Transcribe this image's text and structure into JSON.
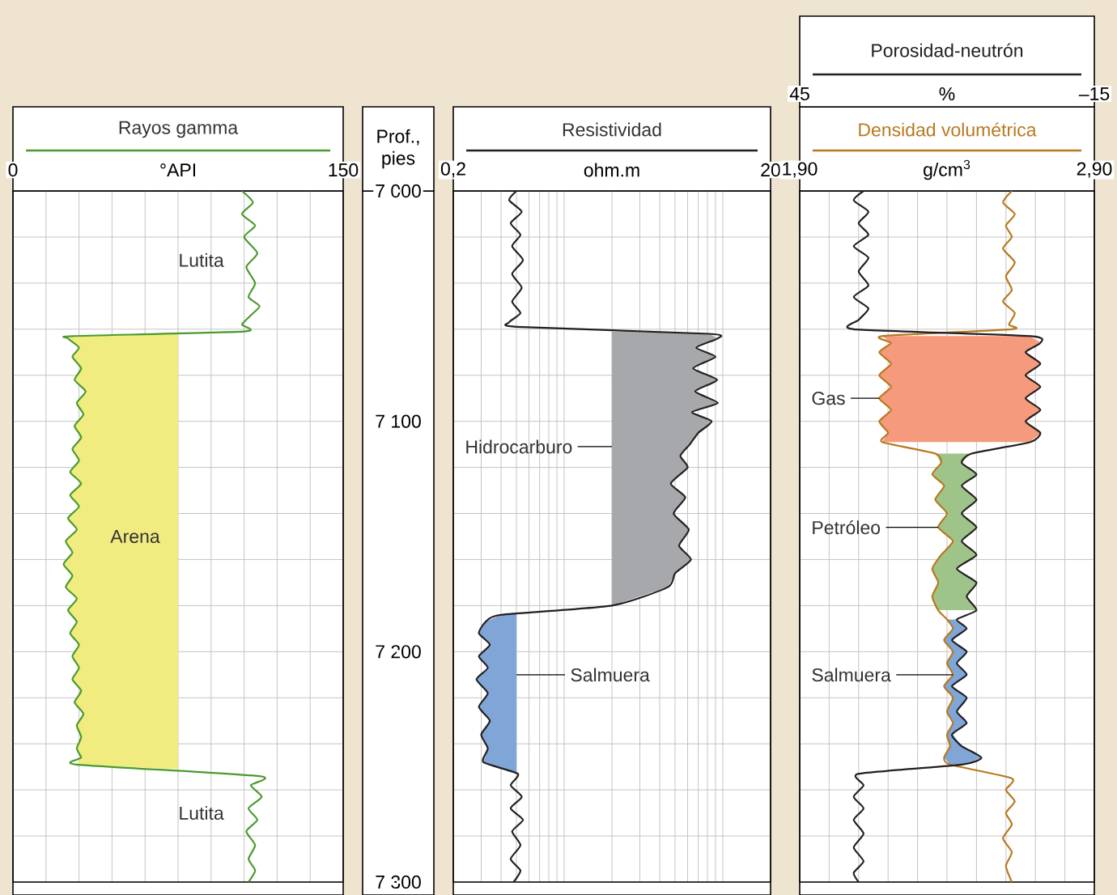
{
  "chart_data": [
    {
      "type": "line",
      "xlabel": "°API",
      "xlim": [
        0,
        150
      ],
      "xticks": [
        0,
        {
          "value": 15,
          "label": null
        },
        {
          "value": 30,
          "label": null
        },
        {
          "value": 45,
          "label": null
        },
        {
          "value": 60,
          "label": null
        },
        {
          "value": 75,
          "label": null
        },
        {
          "value": 90,
          "label": null
        },
        {
          "value": 105,
          "label": null
        },
        {
          "value": 120,
          "label": null
        },
        {
          "value": 135,
          "label": null
        },
        150
      ],
      "ylim": [
        7300,
        7000
      ],
      "yticks": [
        {
          "value": 7000,
          "label": null
        },
        {
          "value": 7020,
          "label": null
        },
        {
          "value": 7040,
          "label": null
        },
        {
          "value": 7060,
          "label": null
        },
        {
          "value": 7080,
          "label": null
        },
        {
          "value": 7100,
          "label": null
        },
        {
          "value": 7120,
          "label": null
        },
        {
          "value": 7140,
          "label": null
        },
        {
          "value": 7160,
          "label": null
        },
        {
          "value": 7180,
          "label": null
        },
        {
          "value": 7200,
          "label": null
        },
        {
          "value": 7220,
          "label": null
        },
        {
          "value": 7240,
          "label": null
        },
        {
          "value": 7260,
          "label": null
        },
        {
          "value": 7280,
          "label": null
        },
        {
          "value": 7300,
          "label": null
        }
      ],
      "tick_labels": "x",
      "grid": true,
      "legend": "top",
      "annotations": [
        "Lutita",
        "Arena",
        "Lutita"
      ],
      "series": [
        {
          "type": "area",
          "color": "#f0ec80",
          "x": [
            75,
            27,
            25,
            30,
            27,
            31,
            28,
            33,
            29,
            32,
            28,
            31,
            27,
            30,
            26,
            31,
            26,
            30,
            25,
            29,
            24,
            27,
            23,
            27,
            24,
            29,
            25,
            29,
            26,
            30,
            27,
            30,
            27,
            31,
            28,
            32,
            29,
            31,
            29,
            31,
            29,
            75
          ],
          "values": [
            7062,
            7063,
            7064,
            7068,
            7072,
            7077,
            7082,
            7087,
            7092,
            7097,
            7102,
            7107,
            7112,
            7117,
            7122,
            7127,
            7132,
            7137,
            7142,
            7147,
            7152,
            7157,
            7162,
            7167,
            7172,
            7177,
            7182,
            7187,
            7192,
            7197,
            7202,
            7207,
            7212,
            7217,
            7222,
            7227,
            7232,
            7237,
            7242,
            7246,
            7249,
            7251
          ]
        },
        {
          "name": "Rayos gamma",
          "color": "#4a9a2e",
          "x": [
            104,
            109,
            104,
            110,
            105,
            111,
            106,
            110,
            107,
            112,
            108,
            104,
            105,
            27,
            25,
            30,
            27,
            31,
            28,
            33,
            29,
            32,
            28,
            31,
            27,
            30,
            26,
            31,
            26,
            30,
            25,
            29,
            24,
            27,
            23,
            27,
            24,
            29,
            25,
            29,
            26,
            30,
            27,
            30,
            27,
            31,
            28,
            32,
            29,
            31,
            29,
            31,
            29,
            112,
            108,
            113,
            107,
            111,
            106,
            110,
            107,
            110,
            107
          ],
          "values": [
            7000,
            7005,
            7010,
            7015,
            7020,
            7027,
            7033,
            7040,
            7046,
            7050,
            7054,
            7058,
            7061,
            7063,
            7064,
            7068,
            7072,
            7077,
            7082,
            7087,
            7092,
            7097,
            7102,
            7107,
            7112,
            7117,
            7122,
            7127,
            7132,
            7137,
            7142,
            7147,
            7152,
            7157,
            7162,
            7167,
            7172,
            7177,
            7182,
            7187,
            7192,
            7197,
            7202,
            7207,
            7212,
            7217,
            7222,
            7227,
            7232,
            7237,
            7242,
            7246,
            7249,
            7254,
            7258,
            7263,
            7268,
            7273,
            7278,
            7284,
            7290,
            7295,
            7300
          ]
        }
      ]
    },
    {
      "type": "line",
      "xlabel": "ohm.m",
      "ylabel": "Prof., pies",
      "log": "x",
      "xlim": [
        0.2,
        20
      ],
      "xticks": [
        {
          "value": 0.2,
          "label": "0,2"
        },
        {
          "value": 0.3,
          "label": null
        },
        {
          "value": 0.4,
          "label": null
        },
        {
          "value": 0.5,
          "label": null
        },
        {
          "value": 0.6,
          "label": null
        },
        {
          "value": 0.7,
          "label": null
        },
        {
          "value": 0.8,
          "label": null
        },
        {
          "value": 0.9,
          "label": null
        },
        {
          "value": 1,
          "label": null
        },
        {
          "value": 2,
          "label": null
        },
        {
          "value": 3,
          "label": null
        },
        {
          "value": 4,
          "label": null
        },
        {
          "value": 5,
          "label": null
        },
        {
          "value": 6,
          "label": null
        },
        {
          "value": 7,
          "label": null
        },
        {
          "value": 8,
          "label": null
        },
        {
          "value": 9,
          "label": null
        },
        {
          "value": 10,
          "label": null
        },
        20
      ],
      "ylim": [
        7300,
        7000
      ],
      "yticks": [
        {
          "value": 7000,
          "label": "7 000"
        },
        {
          "value": 7020,
          "label": null
        },
        {
          "value": 7040,
          "label": null
        },
        {
          "value": 7060,
          "label": null
        },
        {
          "value": 7080,
          "label": null
        },
        {
          "value": 7100,
          "label": "7 100"
        },
        {
          "value": 7120,
          "label": null
        },
        {
          "value": 7140,
          "label": null
        },
        {
          "value": 7160,
          "label": null
        },
        {
          "value": 7180,
          "label": null
        },
        {
          "value": 7200,
          "label": "7 200"
        },
        {
          "value": 7220,
          "label": null
        },
        {
          "value": 7240,
          "label": null
        },
        {
          "value": 7260,
          "label": null
        },
        {
          "value": 7280,
          "label": null
        },
        {
          "value": 7300,
          "label": "7 300"
        }
      ],
      "grid": true,
      "legend": "top",
      "annotations": [
        {
          "text": "Hidrocarburo",
          "x": 2,
          "y": 7111
        },
        {
          "text": "Salmuera",
          "x": 0.5,
          "y": 7210
        }
      ],
      "series": [
        {
          "type": "area",
          "color": "#a7a8ab",
          "x": [
            2,
            8.2,
            9.3,
            6.8,
            9.0,
            6.5,
            9.2,
            6.7,
            9.3,
            6.4,
            8.5,
            7.0,
            6.2,
            5.4,
            6.0,
            4.7,
            5.8,
            4.9,
            6.1,
            5.3,
            6.3,
            5.0,
            4.5,
            2,
            2
          ],
          "values": [
            7061,
            7062,
            7064,
            7068,
            7072,
            7077,
            7082,
            7087,
            7092,
            7096,
            7100,
            7105,
            7110,
            7115,
            7120,
            7127,
            7133,
            7140,
            7147,
            7154,
            7160,
            7166,
            7172,
            7180,
            7111
          ]
        },
        {
          "type": "area",
          "color": "#7fa6d6",
          "x": [
            0.5,
            0.4,
            0.32,
            0.29,
            0.34,
            0.29,
            0.33,
            0.28,
            0.33,
            0.29,
            0.34,
            0.3,
            0.33,
            0.31,
            0.5,
            0.5
          ],
          "values": [
            7183,
            7184,
            7187,
            7192,
            7197,
            7202,
            7207,
            7212,
            7218,
            7224,
            7230,
            7236,
            7242,
            7248,
            7253,
            7210
          ]
        },
        {
          "name": "Resistividad",
          "color": "#231f20",
          "x": [
            0.5,
            0.45,
            0.54,
            0.46,
            0.53,
            0.47,
            0.55,
            0.47,
            0.54,
            0.47,
            0.53,
            0.45,
            0.5,
            8.2,
            9.3,
            6.8,
            9.0,
            6.5,
            9.2,
            6.7,
            9.3,
            6.4,
            8.5,
            7.0,
            6.2,
            5.4,
            6.0,
            4.7,
            5.8,
            4.9,
            6.1,
            5.3,
            6.3,
            5.0,
            4.5,
            2.0,
            0.4,
            0.32,
            0.29,
            0.34,
            0.29,
            0.33,
            0.28,
            0.33,
            0.29,
            0.34,
            0.3,
            0.33,
            0.31,
            0.51,
            0.46,
            0.54,
            0.46,
            0.55,
            0.47,
            0.53,
            0.46,
            0.53,
            0.48
          ],
          "values": [
            7000,
            7004,
            7009,
            7014,
            7019,
            7024,
            7030,
            7036,
            7042,
            7048,
            7053,
            7057,
            7059,
            7062,
            7064,
            7068,
            7072,
            7077,
            7082,
            7087,
            7092,
            7096,
            7100,
            7105,
            7110,
            7115,
            7120,
            7127,
            7133,
            7140,
            7147,
            7154,
            7160,
            7166,
            7172,
            7180,
            7184,
            7187,
            7192,
            7197,
            7202,
            7207,
            7212,
            7218,
            7224,
            7230,
            7236,
            7242,
            7248,
            7253,
            7258,
            7263,
            7268,
            7273,
            7278,
            7284,
            7290,
            7295,
            7300
          ]
        }
      ]
    },
    {
      "type": "line",
      "xlabel": "g/cm$^{3}$",
      "x2label": "%",
      "xlim": [
        1.9,
        2.9
      ],
      "xticks": [
        {
          "value": 1.9,
          "label": "1,90"
        },
        {
          "value": 2.0,
          "label": null
        },
        {
          "value": 2.1,
          "label": null
        },
        {
          "value": 2.2,
          "label": null
        },
        {
          "value": 2.3,
          "label": null
        },
        {
          "value": 2.4,
          "label": null
        },
        {
          "value": 2.5,
          "label": null
        },
        {
          "value": 2.6,
          "label": null
        },
        {
          "value": 2.7,
          "label": null
        },
        {
          "value": 2.8,
          "label": null
        },
        {
          "value": 2.9,
          "label": "2,90"
        }
      ],
      "x2lim": [
        45,
        -15
      ],
      "x2ticks": [
        45,
        {
          "value": -15,
          "label": "–15"
        }
      ],
      "ylim": [
        7300,
        7000
      ],
      "yticks": [
        {
          "value": 7000,
          "label": null
        },
        {
          "value": 7020,
          "label": null
        },
        {
          "value": 7040,
          "label": null
        },
        {
          "value": 7060,
          "label": null
        },
        {
          "value": 7080,
          "label": null
        },
        {
          "value": 7100,
          "label": null
        },
        {
          "value": 7120,
          "label": null
        },
        {
          "value": 7140,
          "label": null
        },
        {
          "value": 7160,
          "label": null
        },
        {
          "value": 7180,
          "label": null
        },
        {
          "value": 7200,
          "label": null
        },
        {
          "value": 7220,
          "label": null
        },
        {
          "value": 7240,
          "label": null
        },
        {
          "value": 7260,
          "label": null
        },
        {
          "value": 7280,
          "label": null
        },
        {
          "value": 7300,
          "label": null
        }
      ],
      "tick_labels": "x",
      "grid": true,
      "legend": "top",
      "annotations": [
        {
          "text": "Gas",
          "x": 2.17,
          "y": 7090
        },
        {
          "text": "Petróleo",
          "x": 2.37,
          "y": 7146
        },
        {
          "text": "Salmuera",
          "x": 2.42,
          "y": 7210
        }
      ],
      "series": [
        {
          "type": "area",
          "color": "#f59a7c",
          "x": [
            2.18,
            2.21,
            2.17,
            2.21,
            2.17,
            2.21,
            2.17,
            2.21,
            2.17,
            2.2,
            2.18,
            2.68,
            2.72,
            2.67,
            2.72,
            2.67,
            2.72,
            2.67,
            2.72,
            2.67,
            2.72,
            2.68
          ],
          "values": [
            7063,
            7066,
            7070,
            7075,
            7080,
            7085,
            7090,
            7095,
            7100,
            7105,
            7109,
            7109,
            7105,
            7100,
            7095,
            7090,
            7085,
            7080,
            7075,
            7070,
            7066,
            7063
          ]
        },
        {
          "type": "area",
          "color": "#9fc48a",
          "x": [
            2.36,
            2.38,
            2.35,
            2.39,
            2.36,
            2.4,
            2.37,
            2.42,
            2.38,
            2.35,
            2.37,
            2.35,
            2.37,
            2.5,
            2.47,
            2.5,
            2.43,
            2.5,
            2.45,
            2.5,
            2.45,
            2.5,
            2.45,
            2.5,
            2.45,
            2.48
          ],
          "values": [
            7114,
            7118,
            7123,
            7128,
            7134,
            7140,
            7146,
            7152,
            7158,
            7164,
            7170,
            7176,
            7182,
            7182,
            7176,
            7170,
            7164,
            7158,
            7152,
            7146,
            7140,
            7134,
            7128,
            7123,
            7118,
            7114
          ]
        },
        {
          "type": "area",
          "color": "#7fa6d6",
          "x": [
            2.4,
            2.42,
            2.39,
            2.42,
            2.4,
            2.42,
            2.39,
            2.42,
            2.4,
            2.42,
            2.4,
            2.41,
            2.39,
            2.41,
            2.45,
            2.52,
            2.45,
            2.42,
            2.47,
            2.43,
            2.47,
            2.42,
            2.47,
            2.43,
            2.47,
            2.42,
            2.47,
            2.43
          ],
          "values": [
            7186,
            7190,
            7195,
            7200,
            7205,
            7210,
            7215,
            7220,
            7226,
            7231,
            7236,
            7241,
            7246,
            7249,
            7249,
            7246,
            7241,
            7236,
            7231,
            7226,
            7220,
            7215,
            7210,
            7205,
            7200,
            7195,
            7190,
            7186
          ]
        },
        {
          "name": "Densidad volumétrica",
          "color": "#b8781e",
          "x": [
            2.62,
            2.59,
            2.63,
            2.6,
            2.62,
            2.59,
            2.63,
            2.6,
            2.62,
            2.59,
            2.63,
            2.61,
            2.62,
            2.18,
            2.21,
            2.17,
            2.21,
            2.17,
            2.21,
            2.17,
            2.21,
            2.17,
            2.2,
            2.18,
            2.36,
            2.38,
            2.35,
            2.39,
            2.36,
            2.4,
            2.37,
            2.42,
            2.38,
            2.35,
            2.37,
            2.35,
            2.37,
            2.4,
            2.42,
            2.39,
            2.42,
            2.4,
            2.42,
            2.39,
            2.42,
            2.4,
            2.42,
            2.4,
            2.41,
            2.39,
            2.41,
            2.62,
            2.6,
            2.63,
            2.6,
            2.62,
            2.59,
            2.62,
            2.6,
            2.62
          ],
          "values": [
            7000,
            7005,
            7010,
            7015,
            7020,
            7025,
            7031,
            7037,
            7043,
            7048,
            7053,
            7058,
            7060,
            7063,
            7066,
            7070,
            7075,
            7080,
            7085,
            7090,
            7095,
            7100,
            7105,
            7109,
            7114,
            7118,
            7123,
            7128,
            7134,
            7140,
            7146,
            7152,
            7158,
            7164,
            7170,
            7176,
            7182,
            7186,
            7190,
            7195,
            7200,
            7205,
            7210,
            7215,
            7220,
            7226,
            7231,
            7236,
            7241,
            7246,
            7249,
            7255,
            7260,
            7265,
            7270,
            7275,
            7281,
            7287,
            7293,
            7300
          ]
        },
        {
          "name": "Porosidad-neutrón",
          "color": "#231f20",
          "axis": "x2",
          "x": [
            32,
            34,
            31,
            33,
            31,
            34,
            31,
            33,
            31,
            34,
            31,
            33,
            34,
            -2,
            -4,
            -1,
            -4,
            -1,
            -4,
            -1,
            -4,
            -1,
            -4,
            -2,
            10,
            12,
            9,
            12,
            9,
            12,
            9,
            12,
            9,
            13,
            9,
            11,
            9,
            13,
            11,
            14,
            11,
            13,
            11,
            14,
            11,
            13,
            11,
            14,
            12,
            8,
            12,
            33,
            32,
            34,
            32,
            34,
            32,
            34,
            32,
            34,
            33
          ],
          "values": [
            7000,
            7004,
            7009,
            7014,
            7019,
            7024,
            7029,
            7035,
            7041,
            7046,
            7051,
            7056,
            7060,
            7063,
            7066,
            7070,
            7075,
            7080,
            7085,
            7090,
            7095,
            7100,
            7105,
            7109,
            7114,
            7118,
            7123,
            7128,
            7134,
            7140,
            7146,
            7152,
            7158,
            7164,
            7170,
            7176,
            7182,
            7186,
            7190,
            7195,
            7200,
            7205,
            7210,
            7215,
            7220,
            7226,
            7231,
            7236,
            7241,
            7246,
            7249,
            7253,
            7258,
            7263,
            7268,
            7273,
            7279,
            7285,
            7291,
            7296,
            7300
          ]
        }
      ]
    }
  ]
}
